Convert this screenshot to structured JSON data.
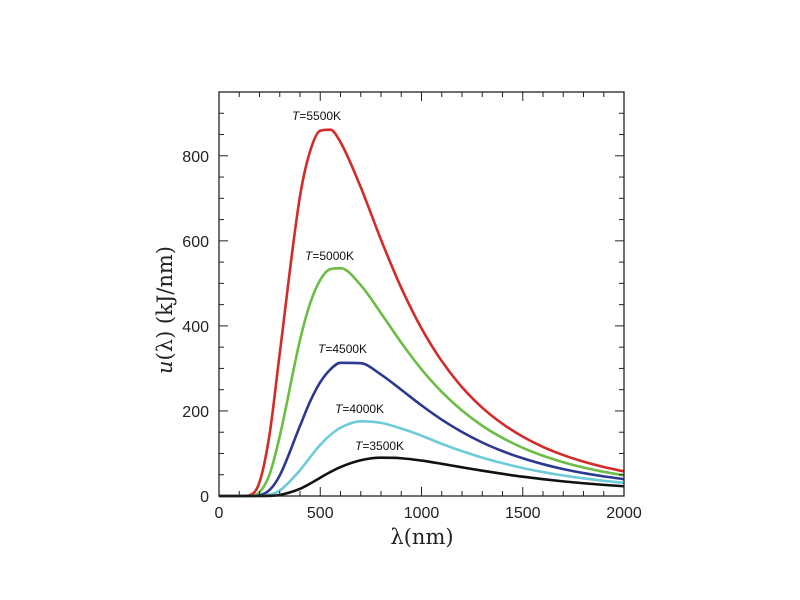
{
  "chart_data": {
    "type": "line",
    "title": "",
    "xlabel": "λ(nm)",
    "ylabel": "u(λ)  (kJ/nm)",
    "ylabel_italic_part": "u",
    "xlim": [
      0,
      2000
    ],
    "ylim": [
      0,
      950
    ],
    "x_ticks": [
      0,
      500,
      1000,
      1500,
      2000
    ],
    "y_ticks": [
      0,
      200,
      400,
      600,
      800
    ],
    "x_minor_step": 100,
    "y_minor_step": 50,
    "grid": false,
    "x": [
      0,
      100,
      150,
      200,
      250,
      300,
      400,
      450,
      500,
      550,
      600,
      700,
      800,
      900,
      1000,
      1100,
      1200,
      1300,
      1400,
      1500,
      1600,
      1700,
      1800,
      1900,
      2000
    ],
    "series": [
      {
        "name": "T=5500K",
        "color": "#d42a2a",
        "values": [
          0,
          0,
          1.8,
          32.5,
          146,
          335.6,
          705,
          811,
          859,
          861.4,
          832,
          726,
          602.6,
          489.6,
          394.2,
          317.3,
          256,
          207.6,
          169.7,
          139.5,
          115.4,
          96.2,
          80.7,
          68.1,
          57.9
        ]
      },
      {
        "name": "T=5000K",
        "color": "#6bbd45",
        "values": [
          0,
          0,
          0.1,
          8.8,
          51.3,
          140.4,
          366.7,
          453.2,
          508.1,
          533.4,
          535.7,
          495.8,
          429.8,
          360.7,
          297.9,
          244.7,
          200.9,
          165.2,
          136.5,
          113.3,
          94.6,
          79.4,
          67.0,
          56.9,
          48.6
        ]
      },
      {
        "name": "T=4500K",
        "color": "#2b3990",
        "values": [
          0,
          0,
          0,
          1.8,
          14.3,
          48.4,
          164.8,
          222.3,
          267.5,
          297.7,
          313.3,
          312.2,
          285.6,
          249.9,
          213.1,
          179.5,
          150.5,
          125.8,
          105.5,
          88.7,
          74.8,
          63.2,
          53.9,
          46.1,
          39.6
        ]
      },
      {
        "name": "T=4000K",
        "color": "#6ccbd9",
        "values": [
          0,
          0,
          0,
          0.24,
          2.9,
          12.8,
          60.65,
          91.4,
          120.2,
          143.6,
          160.5,
          175.6,
          172.0,
          158.6,
          141.9,
          122.6,
          105.5,
          90.3,
          77.2,
          65.8,
          56.3,
          48.2,
          41.5,
          35.8,
          31.0
        ]
      },
      {
        "name": "T=3500K",
        "color": "#111111",
        "values": [
          0,
          0,
          0,
          0.02,
          0.37,
          2.3,
          16.8,
          29.2,
          43.0,
          56.4,
          68.1,
          84.0,
          90.0,
          88.8,
          83.3,
          75.7,
          67.5,
          59.5,
          52.1,
          45.4,
          39.6,
          34.4,
          30.0,
          26.2,
          22.9
        ]
      }
    ],
    "annotations": [
      {
        "prefix": "T",
        "text": "=5500K"
      },
      {
        "prefix": "T",
        "text": "=5000K"
      },
      {
        "prefix": "T",
        "text": "=4500K"
      },
      {
        "prefix": "T",
        "text": "=4000K"
      },
      {
        "prefix": "T",
        "text": "=3500K"
      }
    ]
  }
}
